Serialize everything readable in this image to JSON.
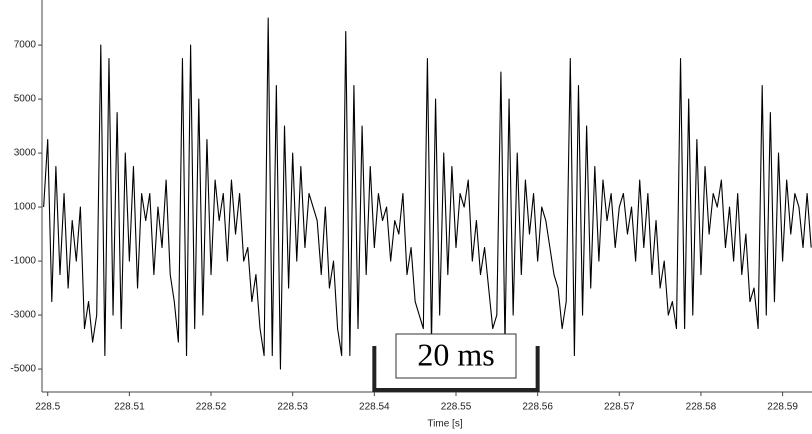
{
  "chart_data": {
    "type": "line",
    "x_label": "Time [s]",
    "x": [
      228.4995,
      228.5,
      228.5005,
      228.501,
      228.5015,
      228.502,
      228.5025,
      228.503,
      228.5035,
      228.504,
      228.5045,
      228.505,
      228.5055,
      228.506,
      228.5065,
      228.507,
      228.5075,
      228.508,
      228.5085,
      228.509,
      228.5095,
      228.51,
      228.5105,
      228.511,
      228.5115,
      228.512,
      228.5125,
      228.513,
      228.5135,
      228.514,
      228.5145,
      228.515,
      228.5155,
      228.516,
      228.5165,
      228.517,
      228.5175,
      228.518,
      228.5185,
      228.519,
      228.5195,
      228.52,
      228.5205,
      228.521,
      228.5215,
      228.522,
      228.5225,
      228.523,
      228.5235,
      228.524,
      228.5245,
      228.525,
      228.5255,
      228.526,
      228.5265,
      228.527,
      228.5275,
      228.528,
      228.5285,
      228.529,
      228.5295,
      228.53,
      228.5305,
      228.531,
      228.5315,
      228.532,
      228.5325,
      228.533,
      228.5335,
      228.534,
      228.5345,
      228.535,
      228.5355,
      228.536,
      228.5365,
      228.537,
      228.5375,
      228.538,
      228.5385,
      228.539,
      228.5395,
      228.54,
      228.5405,
      228.541,
      228.5415,
      228.542,
      228.5425,
      228.543,
      228.5435,
      228.544,
      228.5445,
      228.545,
      228.5455,
      228.546,
      228.5465,
      228.547,
      228.5475,
      228.548,
      228.5485,
      228.549,
      228.5495,
      228.55,
      228.5505,
      228.551,
      228.5515,
      228.552,
      228.5525,
      228.553,
      228.5535,
      228.554,
      228.5545,
      228.555,
      228.5555,
      228.556,
      228.5565,
      228.557,
      228.5575,
      228.558,
      228.5585,
      228.559,
      228.5595,
      228.56,
      228.5605,
      228.561,
      228.5615,
      228.562,
      228.5625,
      228.563,
      228.5635,
      228.564,
      228.5645,
      228.565,
      228.5655,
      228.566,
      228.5665,
      228.567,
      228.5675,
      228.568,
      228.5685,
      228.569,
      228.5695,
      228.57,
      228.5705,
      228.571,
      228.5715,
      228.572,
      228.5725,
      228.573,
      228.5735,
      228.574,
      228.5745,
      228.575,
      228.5755,
      228.576,
      228.5765,
      228.577,
      228.5775,
      228.578,
      228.5785,
      228.579,
      228.5795,
      228.58,
      228.5805,
      228.581,
      228.5815,
      228.582,
      228.5825,
      228.583,
      228.5835,
      228.584,
      228.5845,
      228.585,
      228.5855,
      228.586,
      228.5865,
      228.587,
      228.5875,
      228.588,
      228.5885,
      228.589,
      228.5895,
      228.59,
      228.5905,
      228.591,
      228.5915,
      228.592,
      228.5925,
      228.593,
      228.5935
    ],
    "values": [
      1000,
      3500,
      -2500,
      2500,
      -1500,
      1500,
      -2000,
      500,
      -1000,
      1000,
      -3500,
      -2500,
      -4000,
      -3000,
      7000,
      -4500,
      6500,
      -3000,
      4500,
      -3500,
      3000,
      -1000,
      2500,
      -2000,
      1500,
      500,
      1500,
      -1500,
      1000,
      -500,
      2000,
      -1500,
      -2500,
      -4000,
      6500,
      -4500,
      7000,
      -3500,
      5000,
      -3000,
      3500,
      -1500,
      2000,
      500,
      1500,
      -1000,
      2000,
      0,
      1500,
      -1000,
      -500,
      -2500,
      -1500,
      -3500,
      -4500,
      8000,
      -4500,
      5500,
      -5000,
      4000,
      -2000,
      3000,
      -1000,
      2500,
      -500,
      1500,
      1000,
      500,
      -1500,
      1000,
      -2000,
      -1000,
      -3500,
      -4500,
      7500,
      -4500,
      5500,
      -3500,
      4000,
      -1500,
      2500,
      -500,
      1500,
      500,
      1000,
      -1000,
      500,
      0,
      1500,
      -1500,
      -500,
      -2500,
      -3000,
      -3500,
      6500,
      -4000,
      5000,
      -3000,
      3000,
      -1500,
      2500,
      -500,
      1500,
      1000,
      2000,
      -1000,
      500,
      -1500,
      -500,
      -2000,
      -3500,
      -3000,
      6000,
      -4000,
      5000,
      -3000,
      3000,
      -1500,
      2000,
      0,
      1500,
      -1000,
      1000,
      500,
      -500,
      -1500,
      -2000,
      -3500,
      -2500,
      6500,
      -4500,
      5500,
      -3000,
      4000,
      -2000,
      2500,
      -1000,
      2000,
      500,
      1500,
      -500,
      1000,
      1500,
      0,
      1000,
      -1000,
      2000,
      -500,
      1500,
      -1500,
      500,
      -2000,
      -1000,
      -3000,
      -2500,
      -3500,
      6500,
      -3500,
      5000,
      -3000,
      3500,
      -1500,
      2500,
      0,
      1500,
      1000,
      2000,
      -500,
      1000,
      -1000,
      1500,
      -1500,
      0,
      -2500,
      -2000,
      -3500,
      5500,
      -3000,
      4500,
      -2500,
      3000,
      -1000,
      2000,
      0,
      1500,
      1000,
      -500,
      1500,
      -500
    ],
    "color": "#000000",
    "xlim": [
      228.4993,
      228.5936
    ],
    "ylim": [
      -5850,
      8670
    ],
    "xticks": [
      228.5,
      228.51,
      228.52,
      228.53,
      228.54,
      228.55,
      228.56,
      228.57,
      228.58,
      228.59
    ],
    "yticks": [
      -5000,
      -3000,
      -1000,
      1000,
      3000,
      5000,
      7000
    ],
    "annotation": {
      "text": "20 ms",
      "x": [
        228.54,
        228.56
      ]
    }
  }
}
